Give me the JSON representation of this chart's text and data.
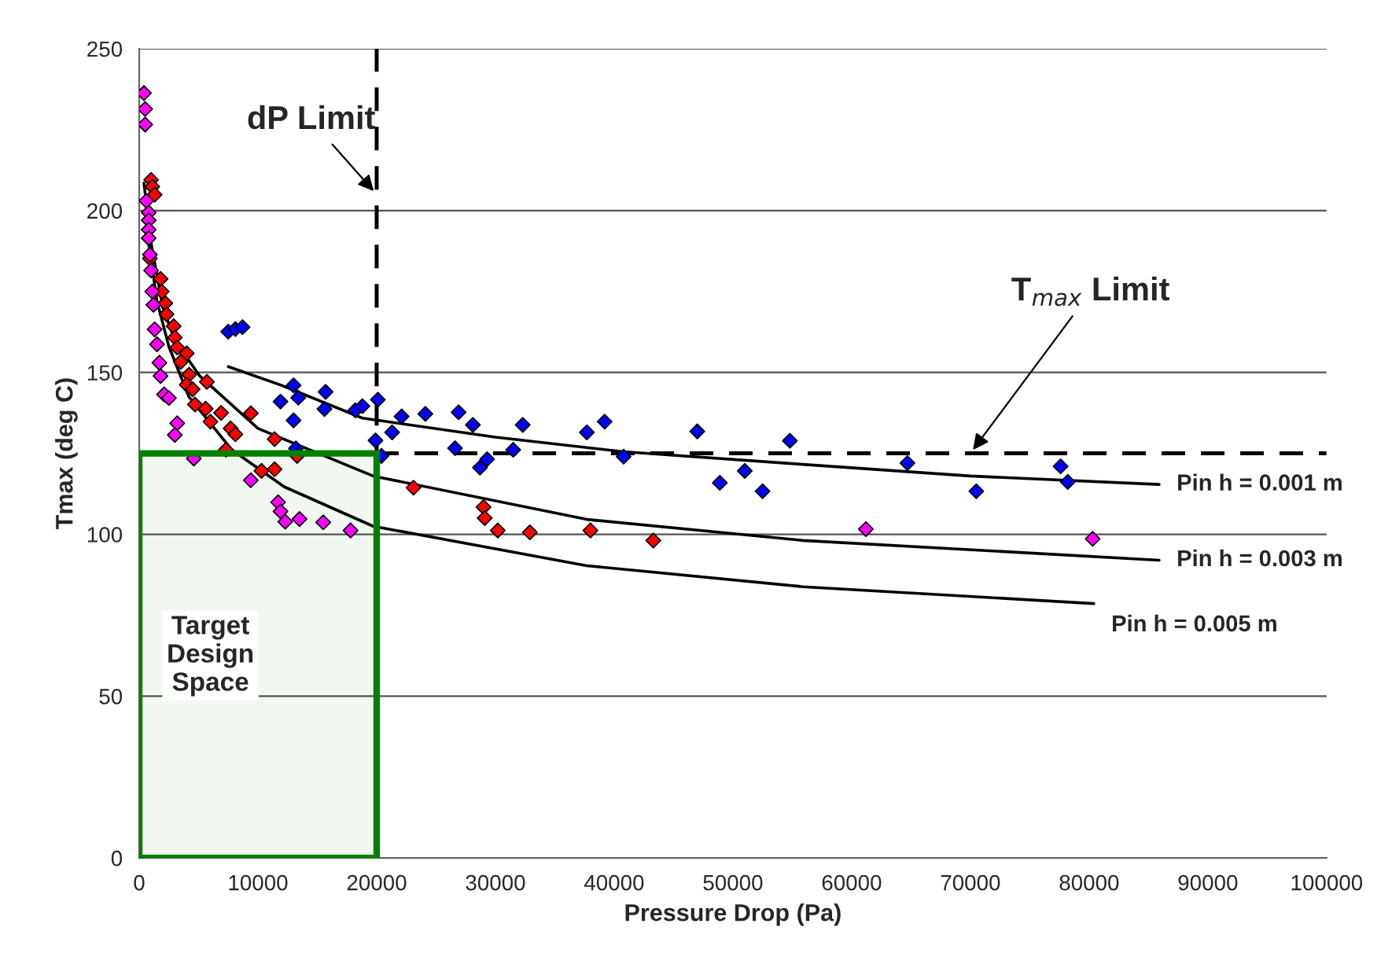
{
  "chart_data": {
    "type": "scatter",
    "xlabel": "Pressure Drop (Pa)",
    "ylabel": "Tmax (deg C)",
    "xlim": [
      0,
      100000
    ],
    "xticks": [
      0,
      10000,
      20000,
      30000,
      40000,
      50000,
      60000,
      70000,
      80000,
      90000,
      100000
    ],
    "ylim": [
      0,
      250
    ],
    "yticks": [
      0,
      50,
      100,
      150,
      200,
      250
    ],
    "grid": "y",
    "legend": false,
    "marker": "diamond",
    "series": [
      {
        "color": "#0000ff",
        "x": [
          7500,
          8100,
          8700,
          13000,
          11900,
          13400,
          15700,
          15600,
          13000,
          18200,
          13200,
          18800,
          20100,
          19900,
          20400,
          21300,
          22100,
          24100,
          26900,
          28100,
          26600,
          28700,
          29300,
          31500,
          32300,
          37700,
          39200,
          40800,
          47000,
          48900,
          51000,
          52500,
          54800,
          64700,
          70500,
          77600,
          78200
        ],
        "values": [
          162.6,
          163.4,
          164,
          146,
          141,
          142.2,
          144,
          138.7,
          135.2,
          138.3,
          126.5,
          139.6,
          141.6,
          129,
          124.2,
          131.5,
          136.4,
          137.2,
          137.7,
          133.8,
          126.6,
          120.6,
          123.2,
          126.1,
          133.8,
          131.5,
          134.8,
          124,
          131.8,
          115.9,
          119.6,
          113.3,
          128.9,
          122,
          113.3,
          121,
          116.2
        ]
      },
      {
        "color": "#ff0000",
        "x": [
          1000,
          1100,
          1300,
          900,
          1800,
          1900,
          2200,
          2300,
          2900,
          3000,
          3200,
          4000,
          3500,
          4200,
          4000,
          5700,
          4500,
          4700,
          5600,
          6000,
          6900,
          9400,
          7700,
          8100,
          7300,
          11400,
          10300,
          11400,
          13300,
          23100,
          29000,
          29100,
          30200,
          32900,
          38000,
          43300
        ],
        "values": [
          209.5,
          207.4,
          204.9,
          185.2,
          178.9,
          175,
          171.4,
          168,
          164.3,
          160.8,
          157.7,
          155.9,
          153.3,
          149.3,
          146.2,
          147.1,
          144.8,
          140.1,
          138.8,
          134.8,
          137.5,
          137.4,
          132.7,
          130.9,
          126.1,
          129.4,
          119.6,
          120.1,
          124.2,
          114.4,
          108.4,
          105,
          101.2,
          100.6,
          101.2,
          98.1
        ]
      },
      {
        "color": "#ff00ff",
        "x": [
          400,
          500,
          500,
          600,
          800,
          800,
          800,
          800,
          900,
          1000,
          1100,
          1200,
          1300,
          1500,
          1700,
          1800,
          2100,
          2500,
          3200,
          3000,
          4600,
          9400,
          11700,
          11900,
          12300,
          13500,
          15500,
          17800,
          61200,
          80300
        ],
        "values": [
          236.3,
          231.4,
          226.6,
          203,
          199.4,
          197,
          194.1,
          191.5,
          186.4,
          181.5,
          175,
          170.9,
          163.3,
          158.7,
          153,
          148.9,
          143.2,
          142.1,
          134.3,
          130.7,
          123.4,
          116.7,
          109.9,
          107.1,
          103.9,
          104.7,
          103.7,
          101.2,
          101.6,
          98.6
        ]
      },
      {
        "type": "line",
        "name": "Pin h = 0.001 m",
        "color": "#000000",
        "marker": "none",
        "line_style": "solid",
        "x": [
          7500,
          12000,
          18800,
          30000,
          40800,
          55900,
          70000,
          85900
        ],
        "values": [
          151.8,
          146,
          135.9,
          130,
          125.5,
          121.6,
          118,
          115.4
        ]
      },
      {
        "type": "line",
        "name": "Pin h = 0.003 m",
        "color": "#000000",
        "marker": "none",
        "line_style": "solid",
        "x": [
          400,
          1000,
          2000,
          3000,
          5100,
          10000,
          19700,
          37700,
          55900,
          85900
        ],
        "values": [
          208.5,
          190,
          170,
          160,
          148.9,
          132.7,
          118,
          104.6,
          98.1,
          92
        ]
      },
      {
        "type": "line",
        "name": "Pin h = 0.005 m",
        "color": "#000000",
        "marker": "none",
        "line_style": "solid",
        "x": [
          600,
          1500,
          2500,
          4200,
          7800,
          12200,
          19700,
          37700,
          55900,
          80400
        ],
        "values": [
          195,
          172,
          158,
          142.4,
          126.1,
          114.7,
          102.5,
          90.3,
          83.8,
          78.6
        ]
      }
    ],
    "ref_lines": [
      {
        "axis": "x",
        "value": 20000,
        "label": "dP Limit",
        "color": "#000000",
        "line_style": "dashed"
      },
      {
        "axis": "y",
        "value": 125,
        "label": "T$_{max}$ Limit",
        "color": "#000000",
        "line_style": "dashed"
      }
    ],
    "bands": [
      {
        "axis": "x",
        "from": 0,
        "to": 20000,
        "label": "Target Design Space",
        "color": "#008000"
      }
    ]
  }
}
